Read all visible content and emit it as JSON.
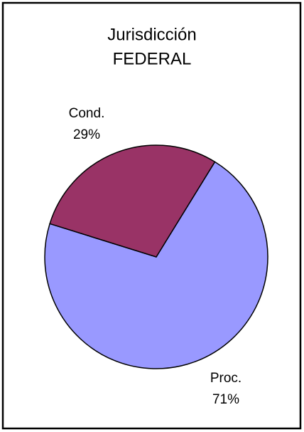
{
  "chart_data": {
    "type": "pie",
    "title": [
      "Jurisdicción",
      "FEDERAL"
    ],
    "categories": [
      "Cond.",
      "Proc."
    ],
    "values": [
      29,
      71
    ],
    "value_labels": [
      "29%",
      "71%"
    ],
    "colors": [
      "#993366",
      "#9999ff"
    ]
  }
}
